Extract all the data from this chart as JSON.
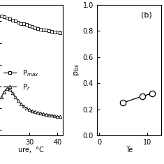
{
  "panel_a": {
    "pmax_x": [
      20,
      21,
      22,
      23,
      24,
      25,
      26,
      27,
      28,
      29,
      30,
      31,
      32,
      33,
      34,
      35,
      36,
      37,
      38,
      39,
      40,
      41
    ],
    "pmax_y": [
      1.05,
      1.04,
      1.03,
      1.02,
      1.01,
      1.0,
      0.99,
      0.98,
      0.975,
      0.968,
      0.958,
      0.948,
      0.94,
      0.933,
      0.928,
      0.922,
      0.917,
      0.912,
      0.907,
      0.903,
      0.899,
      0.895
    ],
    "pr_x": [
      20,
      21,
      22,
      23,
      24,
      25,
      26,
      27,
      28,
      29,
      30,
      31,
      32,
      33,
      34,
      35,
      36,
      37,
      38,
      39,
      40,
      41
    ],
    "pr_y": [
      0.3,
      0.35,
      0.38,
      0.37,
      0.34,
      0.3,
      0.27,
      0.24,
      0.22,
      0.2,
      0.185,
      0.175,
      0.165,
      0.158,
      0.152,
      0.147,
      0.142,
      0.137,
      0.133,
      0.129,
      0.125,
      0.121
    ],
    "xlabel": "ure,  °C",
    "legend_pmax": "P$_{max}$",
    "legend_pr": "P$_{r}$",
    "xticks": [
      30,
      40
    ],
    "xlim": [
      19,
      42
    ],
    "ylim": [
      -0.05,
      1.15
    ]
  },
  "panel_b": {
    "x": [
      5,
      9,
      11
    ],
    "y": [
      0.25,
      0.3,
      0.32
    ],
    "xlabel": "Te",
    "ylabel": "p$_{bs}$",
    "panel_label": "(b)",
    "xticks": [
      0,
      10
    ],
    "xlim": [
      -0.5,
      13
    ],
    "ylim": [
      0.0,
      1.0
    ],
    "yticks": [
      0.0,
      0.2,
      0.4,
      0.6,
      0.8,
      1.0
    ]
  },
  "background_color": "#ffffff"
}
